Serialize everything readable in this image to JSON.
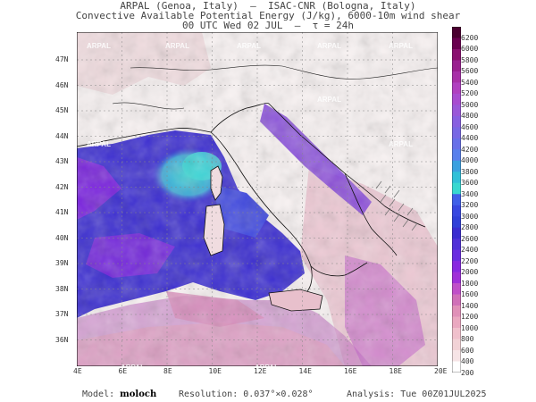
{
  "header": {
    "line1": "ARPAL (Genoa, Italy)  —  ISAC-CNR (Bologna, Italy)",
    "line2": "Convective Available Potential Energy (J/kg), 6000-10m wind shear",
    "line3": "00 UTC Wed 02 JUL  —  τ = 24h"
  },
  "map": {
    "latitude_labels": [
      "47N",
      "46N",
      "45N",
      "44N",
      "43N",
      "42N",
      "41N",
      "40N",
      "39N",
      "38N",
      "37N",
      "36N"
    ],
    "longitude_labels": [
      "4E",
      "6E",
      "8E",
      "10E",
      "12E",
      "14E",
      "16E",
      "18E",
      "20E"
    ],
    "watermark": "ARPAL",
    "colors": {
      "land_bg": "#f4ecec",
      "sea_high": "#3a2cd0",
      "sea_mid": "#8a22e0",
      "cyan": "#3fd9d6",
      "pink": "#e8a8c0"
    }
  },
  "colorbar": {
    "levels": [
      "6200",
      "6000",
      "5800",
      "5600",
      "5400",
      "5200",
      "5000",
      "4800",
      "4600",
      "4400",
      "4200",
      "4000",
      "3800",
      "3600",
      "3400",
      "3200",
      "3000",
      "2800",
      "2600",
      "2400",
      "2200",
      "2000",
      "1800",
      "1600",
      "1400",
      "1200",
      "1000",
      "800",
      "600",
      "400",
      "200"
    ],
    "colors": [
      "#4a0030",
      "#6a0050",
      "#8a1070",
      "#9a2090",
      "#a830a8",
      "#b040c0",
      "#a84cd0",
      "#9a58d8",
      "#8860e0",
      "#7868e4",
      "#6870e8",
      "#5880ec",
      "#3aa0e0",
      "#30c0d8",
      "#38d8d0",
      "#4060e8",
      "#3848e0",
      "#3040d8",
      "#3a2cd0",
      "#5030d8",
      "#6a2ce0",
      "#8828e0",
      "#a030d8",
      "#c050c8",
      "#d070b8",
      "#e090b8",
      "#eaa8c0",
      "#f0c0cc",
      "#f2d2d6",
      "#f6e4e6",
      "#ffffff"
    ]
  },
  "footer": {
    "model_label": "Model:",
    "model_value": "moloch",
    "resolution_label": "Resolution:",
    "resolution_value": "0.037°×0.028°",
    "analysis_label": "Analysis:",
    "analysis_value": "Tue 00Z01JUL2025"
  }
}
